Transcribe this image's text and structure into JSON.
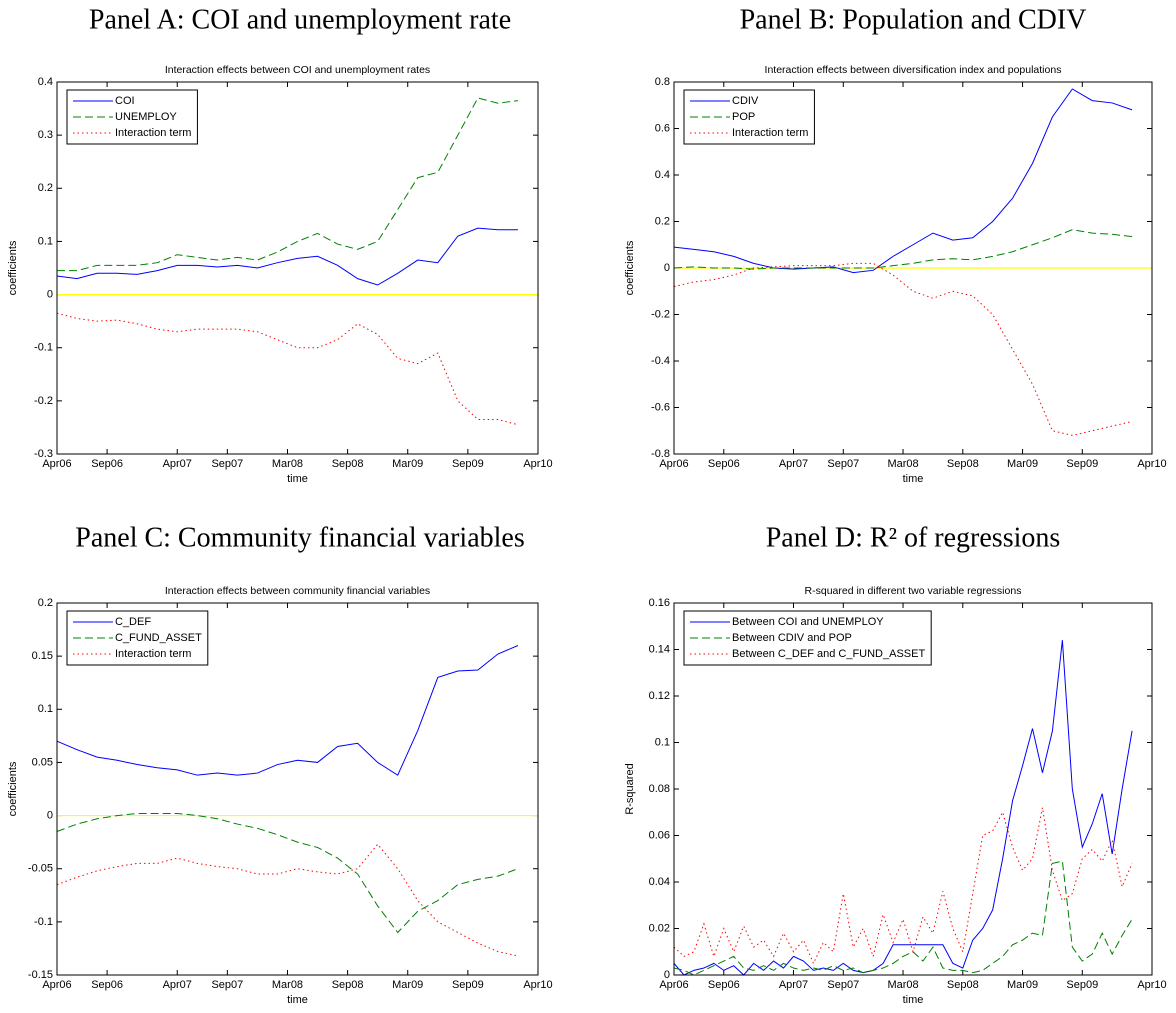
{
  "chart_data": [
    {
      "type": "line",
      "heading": "Panel A: COI and unemployment rate",
      "title": "Interaction effects between COI and unemployment rates",
      "xlabel": "time",
      "ylabel": "coefficients",
      "x": [
        "2006-04",
        "2006-06",
        "2006-08",
        "2006-10",
        "2006-12",
        "2007-02",
        "2007-04",
        "2007-06",
        "2007-08",
        "2007-10",
        "2007-12",
        "2008-02",
        "2008-04",
        "2008-06",
        "2008-08",
        "2008-10",
        "2008-12",
        "2009-02",
        "2009-04",
        "2009-06",
        "2009-08",
        "2009-10",
        "2009-12",
        "2010-02"
      ],
      "xlim": [
        "2006-04",
        "2010-04"
      ],
      "xticks": [
        {
          "value": "2006-04",
          "label": "Apr06"
        },
        {
          "value": "2006-09",
          "label": "Sep06"
        },
        {
          "value": "2007-04",
          "label": "Apr07"
        },
        {
          "value": "2007-09",
          "label": "Sep07"
        },
        {
          "value": "2008-03",
          "label": "Mar08"
        },
        {
          "value": "2008-09",
          "label": "Sep08"
        },
        {
          "value": "2009-03",
          "label": "Mar09"
        },
        {
          "value": "2009-09",
          "label": "Sep09"
        },
        {
          "value": "2010-04",
          "label": "Apr10"
        }
      ],
      "ylim": [
        -0.3,
        0.4
      ],
      "yticks": [
        -0.3,
        -0.2,
        -0.1,
        0,
        0.1,
        0.2,
        0.3,
        0.4
      ],
      "zero_line_color": "#ffff00",
      "legend": "upper left",
      "series": [
        {
          "name": "COI",
          "color": "#0000ff",
          "line_style": "solid",
          "values": [
            0.035,
            0.03,
            0.04,
            0.04,
            0.038,
            0.045,
            0.055,
            0.055,
            0.052,
            0.055,
            0.05,
            0.06,
            0.068,
            0.072,
            0.055,
            0.03,
            0.018,
            0.04,
            0.065,
            0.06,
            0.11,
            0.125,
            0.122,
            0.122
          ]
        },
        {
          "name": "UNEMPLOY",
          "color": "#008000",
          "line_style": "dashed",
          "values": [
            0.045,
            0.045,
            0.055,
            0.055,
            0.055,
            0.06,
            0.075,
            0.07,
            0.065,
            0.07,
            0.065,
            0.08,
            0.1,
            0.115,
            0.095,
            0.085,
            0.1,
            0.16,
            0.22,
            0.23,
            0.3,
            0.37,
            0.36,
            0.365
          ]
        },
        {
          "name": "Interaction term",
          "color": "#ff0000",
          "line_style": "dotted",
          "values": [
            -0.035,
            -0.045,
            -0.05,
            -0.048,
            -0.055,
            -0.065,
            -0.07,
            -0.065,
            -0.065,
            -0.065,
            -0.07,
            -0.085,
            -0.1,
            -0.1,
            -0.085,
            -0.055,
            -0.075,
            -0.12,
            -0.13,
            -0.11,
            -0.2,
            -0.235,
            -0.235,
            -0.245
          ]
        }
      ]
    },
    {
      "type": "line",
      "heading": "Panel B: Population and CDIV",
      "title": "Interaction effects between diversification index and populations",
      "xlabel": "time",
      "ylabel": "coefficients",
      "x": [
        "2006-04",
        "2006-06",
        "2006-08",
        "2006-10",
        "2006-12",
        "2007-02",
        "2007-04",
        "2007-06",
        "2007-08",
        "2007-10",
        "2007-12",
        "2008-02",
        "2008-04",
        "2008-06",
        "2008-08",
        "2008-10",
        "2008-12",
        "2009-02",
        "2009-04",
        "2009-06",
        "2009-08",
        "2009-10",
        "2009-12",
        "2010-02"
      ],
      "xlim": [
        "2006-04",
        "2010-04"
      ],
      "xticks": [
        {
          "value": "2006-04",
          "label": "Apr06"
        },
        {
          "value": "2006-09",
          "label": "Sep06"
        },
        {
          "value": "2007-04",
          "label": "Apr07"
        },
        {
          "value": "2007-09",
          "label": "Sep07"
        },
        {
          "value": "2008-03",
          "label": "Mar08"
        },
        {
          "value": "2008-09",
          "label": "Sep08"
        },
        {
          "value": "2009-03",
          "label": "Mar09"
        },
        {
          "value": "2009-09",
          "label": "Sep09"
        },
        {
          "value": "2010-04",
          "label": "Apr10"
        }
      ],
      "ylim": [
        -0.8,
        0.8
      ],
      "yticks": [
        -0.8,
        -0.6,
        -0.4,
        -0.2,
        0,
        0.2,
        0.4,
        0.6,
        0.8
      ],
      "zero_line_color": "#ffff00",
      "legend": "upper left",
      "series": [
        {
          "name": "CDIV",
          "color": "#0000ff",
          "line_style": "solid",
          "values": [
            0.09,
            0.08,
            0.07,
            0.05,
            0.02,
            0.0,
            -0.005,
            0.0,
            0.005,
            -0.02,
            -0.01,
            0.05,
            0.1,
            0.15,
            0.12,
            0.13,
            0.2,
            0.3,
            0.45,
            0.65,
            0.77,
            0.72,
            0.71,
            0.68
          ]
        },
        {
          "name": "POP",
          "color": "#008000",
          "line_style": "dashed",
          "values": [
            0.0,
            0.005,
            0.0,
            0.0,
            -0.005,
            0.0,
            0.0,
            0.0,
            0.0,
            0.0,
            0.0,
            0.01,
            0.02,
            0.035,
            0.04,
            0.035,
            0.05,
            0.07,
            0.1,
            0.13,
            0.165,
            0.15,
            0.145,
            0.135
          ]
        },
        {
          "name": "Interaction term",
          "color": "#ff0000",
          "line_style": "dotted",
          "values": [
            -0.08,
            -0.06,
            -0.05,
            -0.03,
            0.0,
            0.005,
            0.01,
            0.01,
            0.01,
            0.02,
            0.02,
            -0.03,
            -0.1,
            -0.13,
            -0.1,
            -0.12,
            -0.2,
            -0.35,
            -0.5,
            -0.7,
            -0.72,
            -0.7,
            -0.68,
            -0.66
          ]
        }
      ]
    },
    {
      "type": "line",
      "heading": "Panel C: Community financial variables",
      "title": "Interaction effects between community financial variables",
      "xlabel": "time",
      "ylabel": "coefficients",
      "x": [
        "2006-04",
        "2006-06",
        "2006-08",
        "2006-10",
        "2006-12",
        "2007-02",
        "2007-04",
        "2007-06",
        "2007-08",
        "2007-10",
        "2007-12",
        "2008-02",
        "2008-04",
        "2008-06",
        "2008-08",
        "2008-10",
        "2008-12",
        "2009-02",
        "2009-04",
        "2009-06",
        "2009-08",
        "2009-10",
        "2009-12",
        "2010-02"
      ],
      "xlim": [
        "2006-04",
        "2010-04"
      ],
      "xticks": [
        {
          "value": "2006-04",
          "label": "Apr06"
        },
        {
          "value": "2006-09",
          "label": "Sep06"
        },
        {
          "value": "2007-04",
          "label": "Apr07"
        },
        {
          "value": "2007-09",
          "label": "Sep07"
        },
        {
          "value": "2008-03",
          "label": "Mar08"
        },
        {
          "value": "2008-09",
          "label": "Sep08"
        },
        {
          "value": "2009-03",
          "label": "Mar09"
        },
        {
          "value": "2009-09",
          "label": "Sep09"
        },
        {
          "value": "2010-04",
          "label": "Apr10"
        }
      ],
      "ylim": [
        -0.15,
        0.2
      ],
      "yticks": [
        -0.15,
        -0.1,
        -0.05,
        0,
        0.05,
        0.1,
        0.15,
        0.2
      ],
      "zero_line_color": "#ffff00",
      "legend": "upper left",
      "series": [
        {
          "name": "C_DEF",
          "color": "#0000ff",
          "line_style": "solid",
          "values": [
            0.07,
            0.062,
            0.055,
            0.052,
            0.048,
            0.045,
            0.043,
            0.038,
            0.04,
            0.038,
            0.04,
            0.048,
            0.052,
            0.05,
            0.065,
            0.068,
            0.05,
            0.038,
            0.08,
            0.13,
            0.136,
            0.137,
            0.152,
            0.16
          ]
        },
        {
          "name": "C_FUND_ASSET",
          "color": "#008000",
          "line_style": "dashed",
          "values": [
            -0.015,
            -0.008,
            -0.003,
            0.0,
            0.002,
            0.002,
            0.002,
            0.0,
            -0.003,
            -0.008,
            -0.012,
            -0.018,
            -0.025,
            -0.03,
            -0.04,
            -0.055,
            -0.085,
            -0.11,
            -0.09,
            -0.08,
            -0.065,
            -0.06,
            -0.057,
            -0.05
          ]
        },
        {
          "name": "Interaction term",
          "color": "#ff0000",
          "line_style": "dotted",
          "values": [
            -0.065,
            -0.058,
            -0.052,
            -0.048,
            -0.045,
            -0.045,
            -0.04,
            -0.045,
            -0.048,
            -0.05,
            -0.055,
            -0.055,
            -0.05,
            -0.053,
            -0.055,
            -0.05,
            -0.027,
            -0.05,
            -0.08,
            -0.1,
            -0.11,
            -0.12,
            -0.128,
            -0.132
          ]
        }
      ]
    },
    {
      "type": "line",
      "heading": "Panel D: R² of regressions",
      "title": "R-squared in different two variable regressions",
      "xlabel": "time",
      "ylabel": "R-squared",
      "x": [
        "2006-04",
        "2006-05",
        "2006-06",
        "2006-07",
        "2006-08",
        "2006-09",
        "2006-10",
        "2006-11",
        "2006-12",
        "2007-01",
        "2007-02",
        "2007-03",
        "2007-04",
        "2007-05",
        "2007-06",
        "2007-07",
        "2007-08",
        "2007-09",
        "2007-10",
        "2007-11",
        "2007-12",
        "2008-01",
        "2008-02",
        "2008-03",
        "2008-04",
        "2008-05",
        "2008-06",
        "2008-07",
        "2008-08",
        "2008-09",
        "2008-10",
        "2008-11",
        "2008-12",
        "2009-01",
        "2009-02",
        "2009-03",
        "2009-04",
        "2009-05",
        "2009-06",
        "2009-07",
        "2009-08",
        "2009-09",
        "2009-10",
        "2009-11",
        "2009-12",
        "2010-01",
        "2010-02"
      ],
      "xlim": [
        "2006-04",
        "2010-04"
      ],
      "xticks": [
        {
          "value": "2006-04",
          "label": "Apr06"
        },
        {
          "value": "2006-09",
          "label": "Sep06"
        },
        {
          "value": "2007-04",
          "label": "Apr07"
        },
        {
          "value": "2007-09",
          "label": "Sep07"
        },
        {
          "value": "2008-03",
          "label": "Mar08"
        },
        {
          "value": "2008-09",
          "label": "Sep08"
        },
        {
          "value": "2009-03",
          "label": "Mar09"
        },
        {
          "value": "2009-09",
          "label": "Sep09"
        },
        {
          "value": "2010-04",
          "label": "Apr10"
        }
      ],
      "ylim": [
        0,
        0.16
      ],
      "yticks": [
        0,
        0.02,
        0.04,
        0.06,
        0.08,
        0.1,
        0.12,
        0.14,
        0.16
      ],
      "legend": "upper left",
      "series": [
        {
          "name": "Between COI and UNEMPLOY",
          "color": "#0000ff",
          "line_style": "solid",
          "values": [
            0.005,
            0.0,
            0.002,
            0.003,
            0.005,
            0.002,
            0.004,
            0.0,
            0.005,
            0.002,
            0.006,
            0.003,
            0.008,
            0.006,
            0.002,
            0.003,
            0.002,
            0.005,
            0.002,
            0.001,
            0.002,
            0.005,
            0.013,
            0.013,
            0.013,
            0.013,
            0.013,
            0.013,
            0.005,
            0.003,
            0.015,
            0.02,
            0.028,
            0.05,
            0.075,
            0.09,
            0.106,
            0.087,
            0.105,
            0.144,
            0.08,
            0.055,
            0.065,
            0.078,
            0.052,
            0.08,
            0.105
          ]
        },
        {
          "name": "Between CDIV and POP",
          "color": "#008000",
          "line_style": "dashed",
          "values": [
            0.003,
            0.002,
            0.0,
            0.002,
            0.004,
            0.006,
            0.008,
            0.003,
            0.002,
            0.004,
            0.002,
            0.005,
            0.003,
            0.002,
            0.003,
            0.002,
            0.004,
            0.002,
            0.003,
            0.001,
            0.002,
            0.003,
            0.005,
            0.008,
            0.01,
            0.006,
            0.012,
            0.003,
            0.002,
            0.002,
            0.001,
            0.002,
            0.005,
            0.008,
            0.013,
            0.015,
            0.018,
            0.017,
            0.048,
            0.049,
            0.012,
            0.006,
            0.009,
            0.018,
            0.009,
            0.017,
            0.024
          ]
        },
        {
          "name": "Between C_DEF and C_FUND_ASSET",
          "color": "#ff0000",
          "line_style": "dotted",
          "values": [
            0.012,
            0.008,
            0.01,
            0.022,
            0.008,
            0.02,
            0.01,
            0.021,
            0.012,
            0.015,
            0.008,
            0.018,
            0.01,
            0.015,
            0.005,
            0.014,
            0.01,
            0.035,
            0.012,
            0.02,
            0.008,
            0.026,
            0.014,
            0.024,
            0.01,
            0.025,
            0.018,
            0.036,
            0.02,
            0.01,
            0.035,
            0.06,
            0.062,
            0.07,
            0.055,
            0.045,
            0.05,
            0.072,
            0.045,
            0.032,
            0.035,
            0.05,
            0.054,
            0.049,
            0.058,
            0.038,
            0.048
          ]
        }
      ]
    }
  ]
}
